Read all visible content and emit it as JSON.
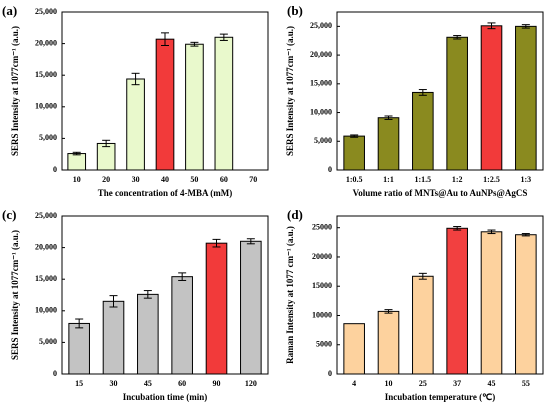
{
  "chart_data": [
    {
      "type": "bar",
      "panel": "(a)",
      "x_label": "The concentration of 4-MBA (mM)",
      "y_label": "SERS Intensity at 1077cm⁻¹ (a.u.)",
      "categories": [
        "10",
        "20",
        "30",
        "40",
        "50",
        "60",
        "70"
      ],
      "values": [
        2600,
        4200,
        14400,
        20700,
        19900,
        21000,
        null
      ],
      "errors": [
        200,
        500,
        900,
        1000,
        300,
        500,
        null
      ],
      "colors": [
        "#e9f9cc",
        "#e9f9cc",
        "#e9f9cc",
        "#f23a3a",
        "#e9f9cc",
        "#e9f9cc",
        "#e9f9cc"
      ],
      "ylim": [
        0,
        25000
      ],
      "yticks": [
        0,
        {
          "value": 5000,
          "label": "5,000"
        },
        {
          "value": 10000,
          "label": "10,000"
        },
        {
          "value": 15000,
          "label": "15,000"
        },
        {
          "value": 20000,
          "label": "20,000"
        },
        {
          "value": 25000,
          "label": "25,000"
        }
      ]
    },
    {
      "type": "bar",
      "panel": "(b)",
      "x_label": "Volume ratio of MNTs@Au to AuNPs@AgCS",
      "y_label": "SERS Intensity at 1077cm⁻¹ (a.u.)",
      "categories": [
        "1:0.5",
        "1:1",
        "1:1.5",
        "1:2",
        "1:2.5",
        "1:3"
      ],
      "values": [
        5900,
        9100,
        13500,
        23100,
        25100,
        25000
      ],
      "errors": [
        200,
        300,
        500,
        300,
        500,
        300
      ],
      "colors": [
        "#8a8a1f",
        "#8a8a1f",
        "#8a8a1f",
        "#8a8a1f",
        "#f23a3a",
        "#8a8a1f"
      ],
      "ylim": [
        0,
        27500
      ],
      "yticks": [
        0,
        {
          "value": 5000,
          "label": "5,000"
        },
        {
          "value": 10000,
          "label": "10,000"
        },
        {
          "value": 15000,
          "label": "15,000"
        },
        {
          "value": 20000,
          "label": "20,000"
        },
        {
          "value": 25000,
          "label": "25,000"
        }
      ]
    },
    {
      "type": "bar",
      "panel": "(c)",
      "x_label": "Incubation time (min)",
      "y_label": "SERS Intensity at 1077cm⁻¹ (a.u.)",
      "categories": [
        "15",
        "30",
        "45",
        "60",
        "90",
        "120"
      ],
      "values": [
        8000,
        11500,
        12600,
        15400,
        20700,
        21000
      ],
      "errors": [
        700,
        900,
        600,
        600,
        600,
        400
      ],
      "colors": [
        "#c3c3c3",
        "#c3c3c3",
        "#c3c3c3",
        "#c3c3c3",
        "#f23a3a",
        "#c3c3c3"
      ],
      "ylim": [
        0,
        25000
      ],
      "yticks": [
        0,
        {
          "value": 5000,
          "label": "5,000"
        },
        {
          "value": 10000,
          "label": "10,000"
        },
        {
          "value": 15000,
          "label": "15,000"
        },
        {
          "value": 20000,
          "label": "20,000"
        },
        {
          "value": 25000,
          "label": "25,000"
        }
      ]
    },
    {
      "type": "bar",
      "panel": "(d)",
      "x_label": "Incubation temperature (℃)",
      "y_label": "Raman Intensity at 1077 cm⁻¹ (a.u.)",
      "categories": [
        "4",
        "10",
        "25",
        "37",
        "45",
        "55"
      ],
      "values": [
        8600,
        10700,
        16700,
        24900,
        24300,
        23800
      ],
      "errors": [
        0,
        300,
        500,
        300,
        300,
        200
      ],
      "colors": [
        "#fdd29e",
        "#fdd29e",
        "#fdd29e",
        "#f24040",
        "#fdd29e",
        "#fdd29e"
      ],
      "ylim": [
        0,
        27000
      ],
      "yticks": [
        0,
        5000,
        10000,
        15000,
        20000,
        25000
      ]
    }
  ]
}
